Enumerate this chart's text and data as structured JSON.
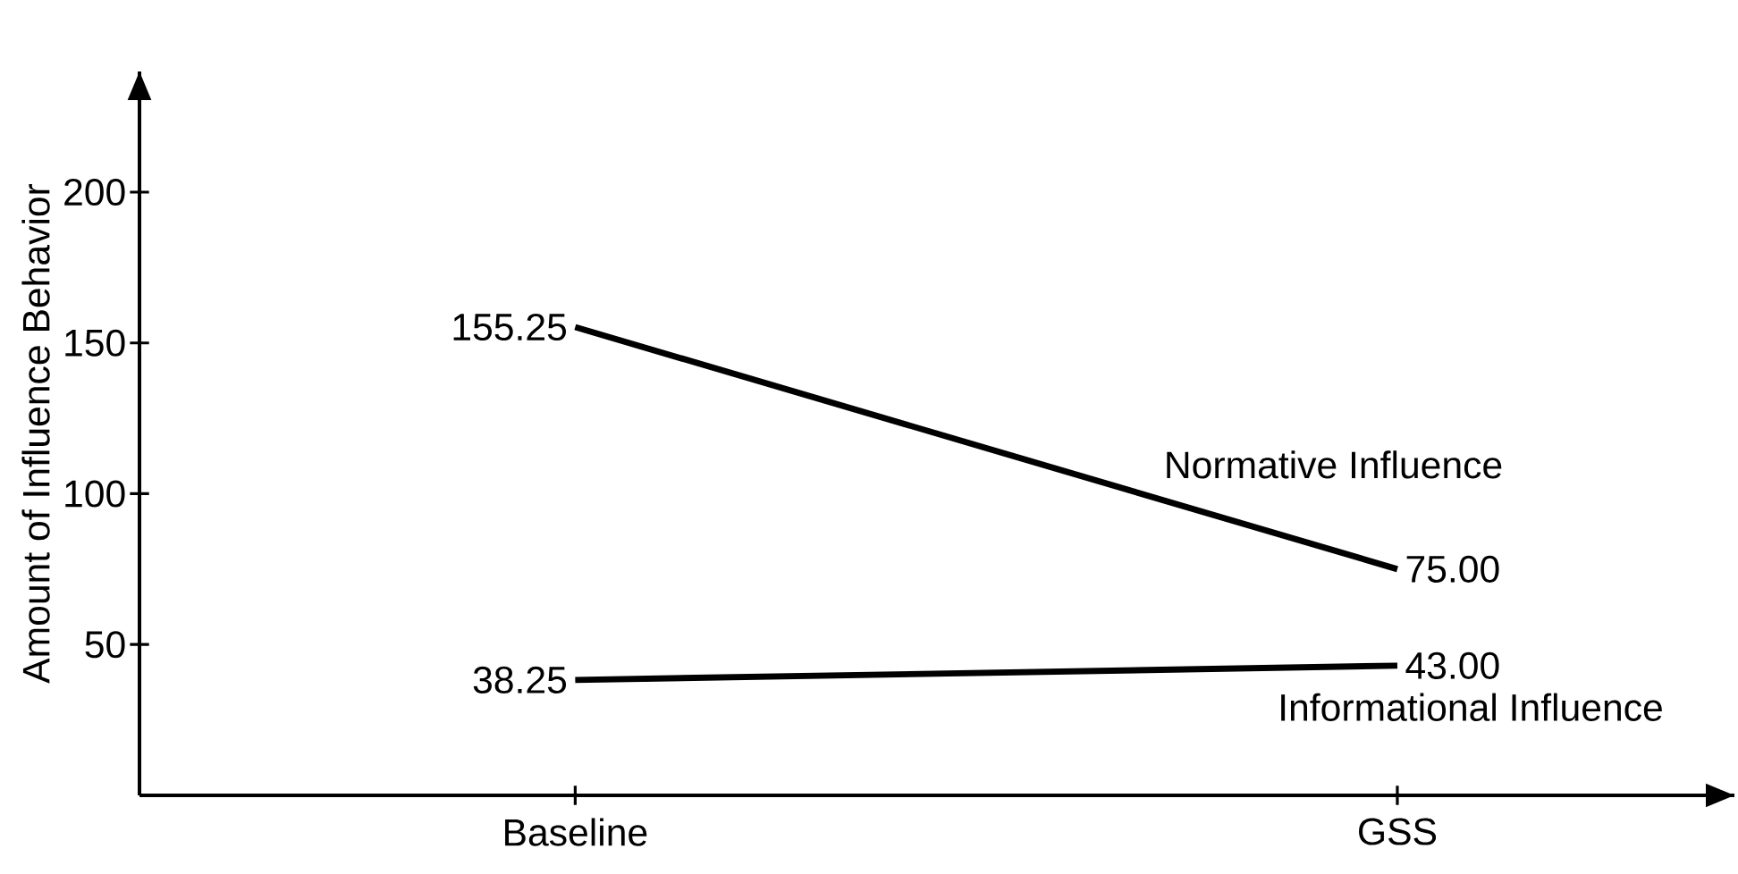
{
  "chart_data": {
    "type": "line",
    "ylabel": "Amount of Influence Behavior",
    "categories": [
      "Baseline",
      "GSS"
    ],
    "ylim": [
      0,
      240
    ],
    "yticks": [
      50,
      100,
      150,
      200
    ],
    "grid": false,
    "series": [
      {
        "name": "Normative Influence",
        "color": "#000000",
        "values": [
          155.25,
          75.0
        ],
        "value_labels": [
          "155.25",
          "75.00"
        ]
      },
      {
        "name": "Informational Influence",
        "color": "#000000",
        "values": [
          38.25,
          43.0
        ],
        "value_labels": [
          "38.25",
          "43.00"
        ]
      }
    ]
  }
}
